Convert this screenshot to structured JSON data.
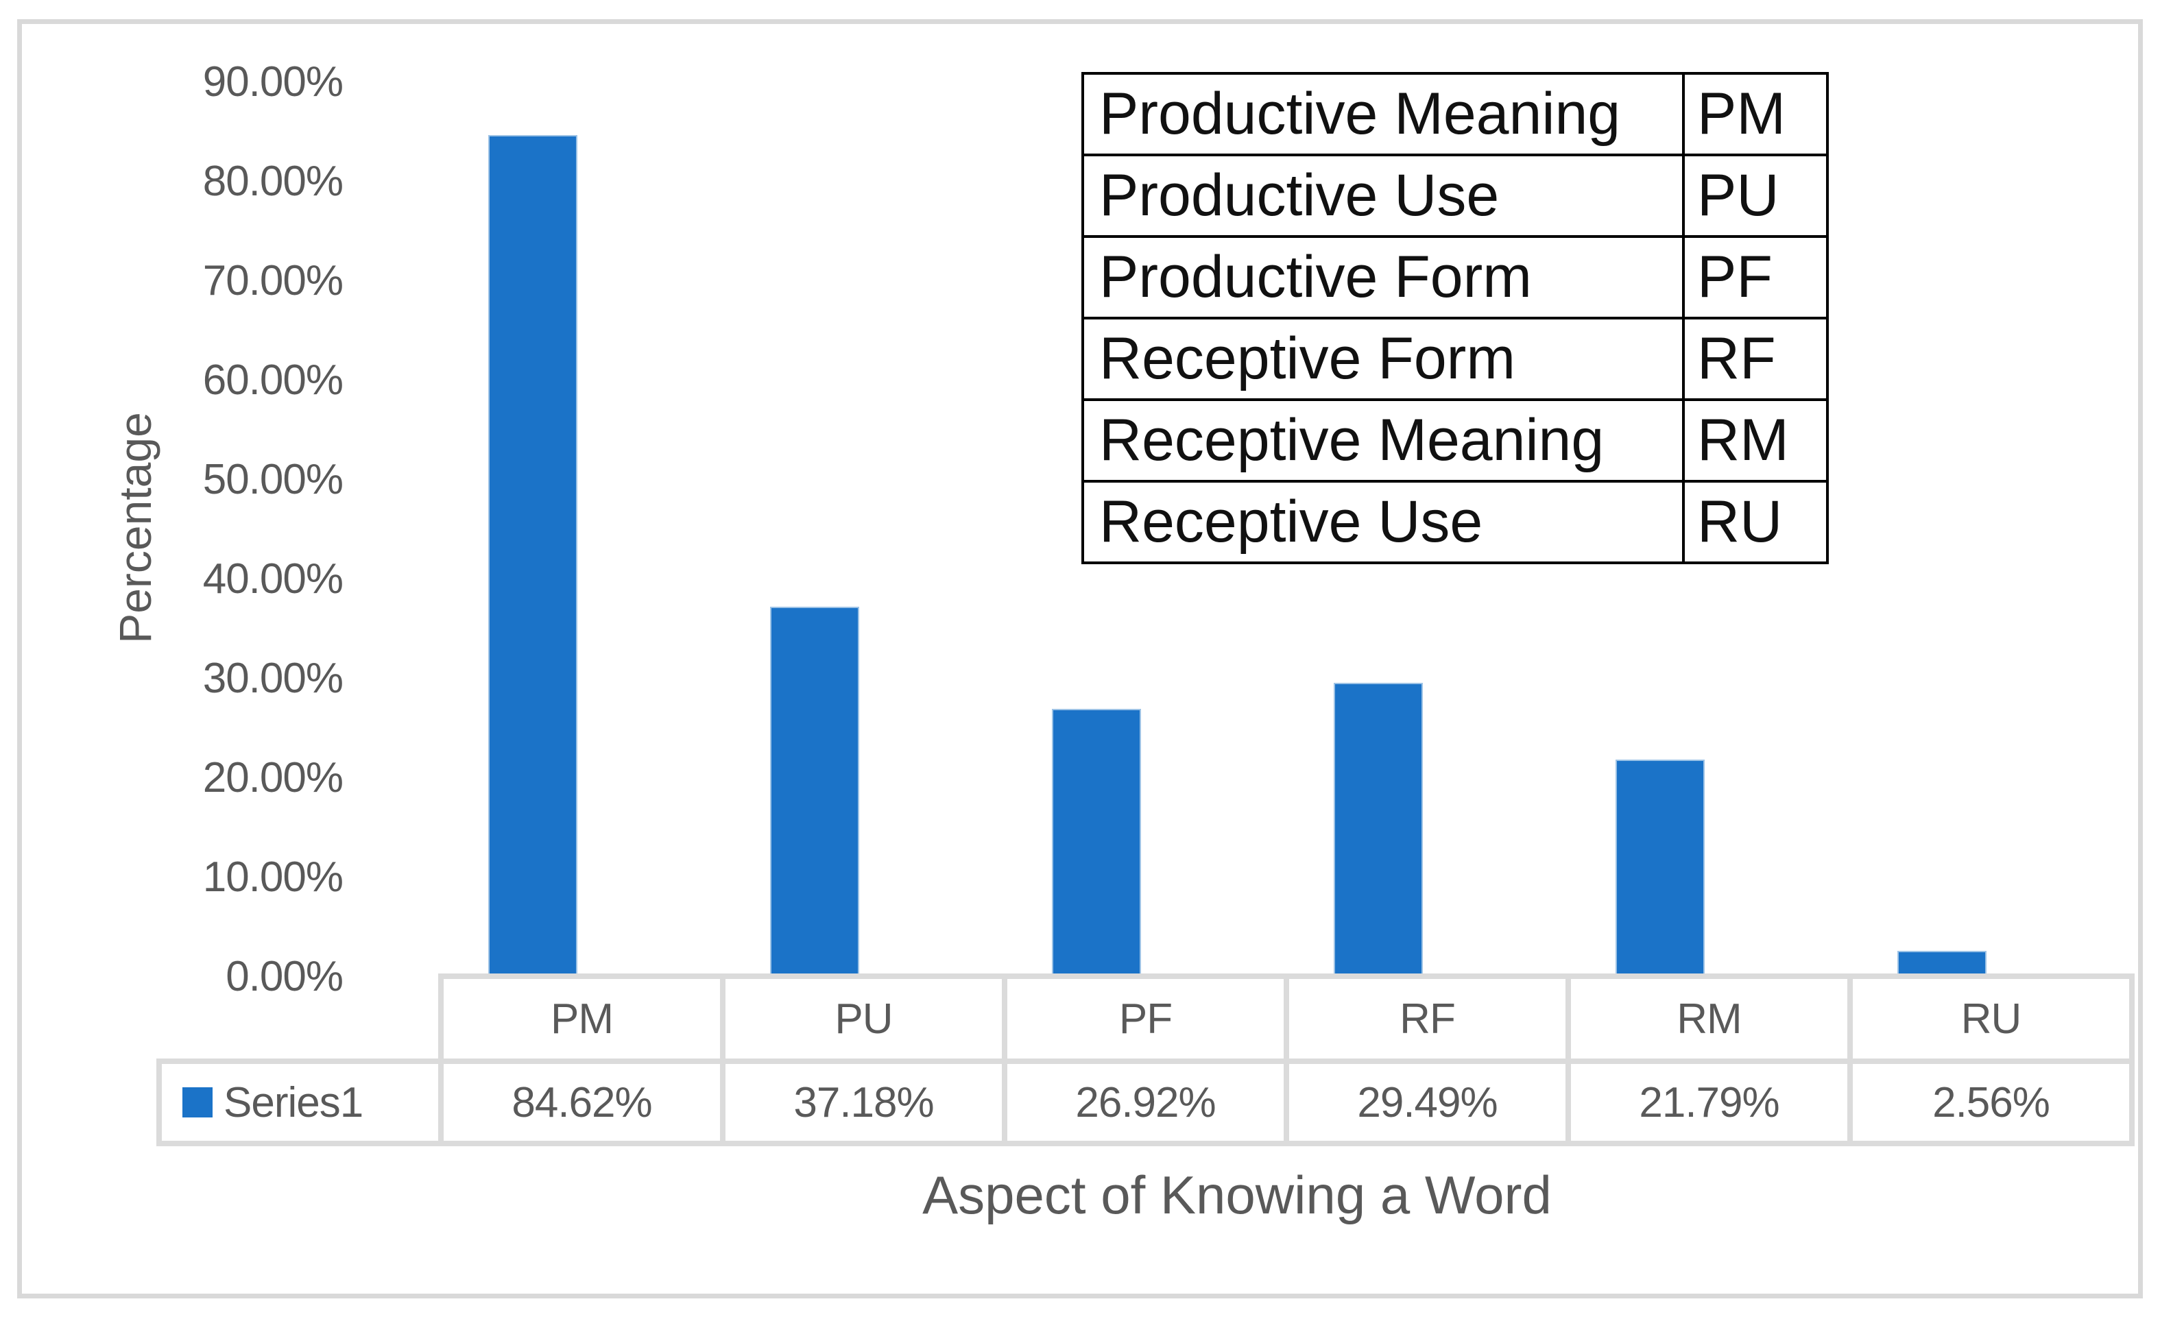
{
  "chart_data": {
    "type": "bar",
    "title": "",
    "categories": [
      "PM",
      "PU",
      "PF",
      "RF",
      "RM",
      "RU"
    ],
    "series": [
      {
        "name": "Series1",
        "values": [
          84.62,
          37.18,
          26.92,
          29.49,
          21.79,
          2.56
        ],
        "labels": [
          "84.62%",
          "37.18%",
          "26.92%",
          "29.49%",
          "21.79%",
          "2.56%"
        ]
      }
    ],
    "xlabel": "Aspect of Knowing a Word",
    "ylabel": "Percentage",
    "ylim": [
      0,
      90
    ],
    "y_ticks": [
      "90.00%",
      "80.00%",
      "70.00%",
      "60.00%",
      "50.00%",
      "40.00%",
      "30.00%",
      "20.00%",
      "10.00%",
      "0.00%"
    ],
    "grid": false,
    "legend_position": "data-table-below-axis",
    "bar_color": "#1b73c8"
  },
  "legend_table": {
    "rows": [
      {
        "name": "Productive Meaning",
        "abbr": "PM"
      },
      {
        "name": "Productive Use",
        "abbr": "PU"
      },
      {
        "name": "Productive Form",
        "abbr": "PF"
      },
      {
        "name": "Receptive Form",
        "abbr": "RF"
      },
      {
        "name": "Receptive Meaning",
        "abbr": "RM"
      },
      {
        "name": "Receptive Use",
        "abbr": "RU"
      }
    ]
  },
  "colors": {
    "bar": "#1b73c8",
    "axis_text": "#595959",
    "data_table_border": "#dbdbdb",
    "legend_table_border": "#000000",
    "chart_frame_border": "#d9d9d9"
  }
}
